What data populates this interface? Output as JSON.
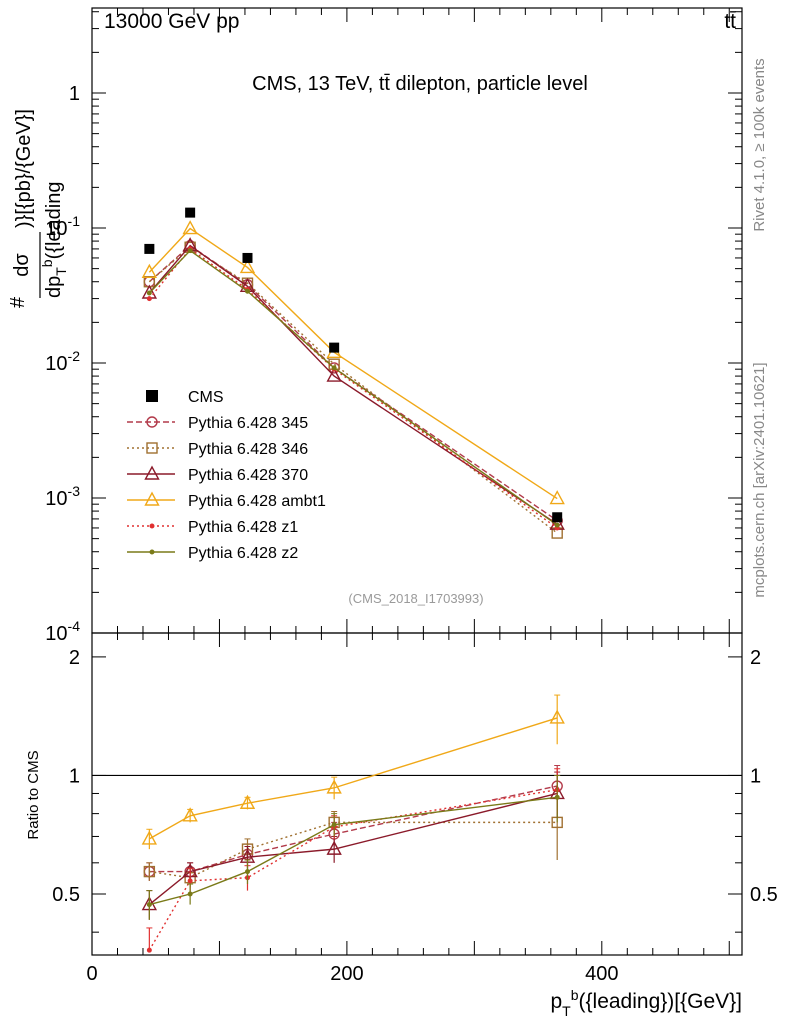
{
  "header": {
    "left": "13000 GeV pp",
    "right": "tt̄"
  },
  "side_labels": {
    "version": "Rivet 4.1.0, ≥ 100k events",
    "source": "mcplots.cern.ch [arXiv:2401.10621]"
  },
  "chart_data": {
    "type": "line",
    "title": "CMS, 13 TeV, tt̄ dilepton, particle level",
    "watermark": "(CMS_2018_I1703993)",
    "xlabel": "p_T^b({leading})[{GeV}]",
    "ylabel_top": "#dσ / dp_T^b({leading})[{pb}/{GeV}]",
    "ylabel_ratio": "Ratio to CMS",
    "xlim": [
      0,
      510
    ],
    "ylim_top": [
      0.0001,
      3
    ],
    "ylim_ratio": [
      0.35,
      2.3
    ],
    "y_scale_top": "log",
    "x_ticks": [
      0,
      200,
      400
    ],
    "y_ticks_top": [
      "10^-4",
      "10^-3",
      "10^-2",
      "10^-1",
      "1"
    ],
    "y_ticks_ratio": [
      "0.5",
      "1",
      "2"
    ],
    "x": [
      45,
      77,
      122,
      190,
      365
    ],
    "data": {
      "name": "CMS",
      "values": [
        0.07,
        0.13,
        0.06,
        0.013,
        0.00072
      ]
    },
    "series": [
      {
        "name": "Pythia 6.428 345",
        "color": "#b23a4a",
        "dash": "6,3",
        "marker": "circle",
        "values": [
          0.04,
          0.074,
          0.038,
          0.0092,
          0.00068
        ],
        "ratio": [
          0.57,
          0.57,
          0.63,
          0.71,
          0.94
        ],
        "ratio_err": [
          0.03,
          0.03,
          0.04,
          0.05,
          0.12
        ]
      },
      {
        "name": "Pythia 6.428 346",
        "color": "#a07030",
        "dash": "2,3",
        "marker": "square",
        "values": [
          0.04,
          0.072,
          0.039,
          0.0098,
          0.00055
        ],
        "ratio": [
          0.57,
          0.55,
          0.65,
          0.76,
          0.76
        ],
        "ratio_err": [
          0.03,
          0.03,
          0.04,
          0.05,
          0.15
        ]
      },
      {
        "name": "Pythia 6.428 370",
        "color": "#8b1a2a",
        "dash": "",
        "marker": "triangle",
        "values": [
          0.033,
          0.074,
          0.037,
          0.008,
          0.00064
        ],
        "ratio": [
          0.47,
          0.57,
          0.62,
          0.65,
          0.9
        ],
        "ratio_err": [
          0.04,
          0.03,
          0.04,
          0.05,
          0.12
        ]
      },
      {
        "name": "Pythia 6.428 ambt1",
        "color": "#f0a818",
        "dash": "",
        "marker": "triangle",
        "values": [
          0.047,
          0.099,
          0.051,
          0.012,
          0.00099
        ],
        "ratio": [
          0.69,
          0.79,
          0.85,
          0.93,
          1.4
        ],
        "ratio_err": [
          0.04,
          0.03,
          0.03,
          0.06,
          0.2
        ]
      },
      {
        "name": "Pythia 6.428 z1",
        "color": "#e03030",
        "dash": "2,3",
        "marker": "dot",
        "values": [
          0.03,
          0.07,
          0.035,
          0.009,
          0.0006
        ],
        "ratio": [
          0.36,
          0.54,
          0.55,
          0.74,
          0.92
        ],
        "ratio_err": [
          0.05,
          0.04,
          0.04,
          0.05,
          0.12
        ]
      },
      {
        "name": "Pythia 6.428 z2",
        "color": "#7a7a18",
        "dash": "",
        "marker": "dot",
        "values": [
          0.033,
          0.068,
          0.034,
          0.0092,
          0.00063
        ],
        "ratio": [
          0.47,
          0.5,
          0.57,
          0.75,
          0.88
        ],
        "ratio_err": [
          0.04,
          0.03,
          0.04,
          0.05,
          0.12
        ]
      }
    ]
  }
}
